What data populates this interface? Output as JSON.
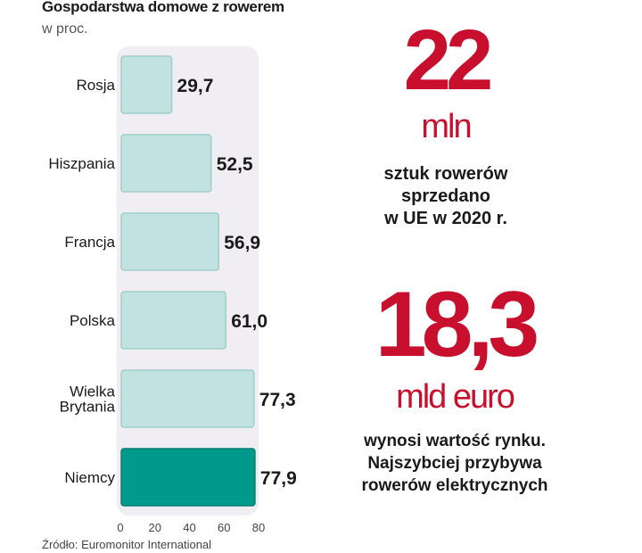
{
  "header": {
    "title": "Gospodarstwa domowe z rowerem",
    "subtitle": "w proc."
  },
  "chart_data": {
    "type": "bar",
    "orientation": "horizontal",
    "categories": [
      "Rosja",
      "Hiszpania",
      "Francja",
      "Polska",
      "Wielka\nBrytania",
      "Niemcy"
    ],
    "values": [
      29.7,
      52.5,
      56.9,
      61.0,
      77.3,
      77.9
    ],
    "value_labels": [
      "29,7",
      "52,5",
      "56,9",
      "61,0",
      "77,3",
      "77,9"
    ],
    "highlight_index": 5,
    "xlim": [
      0,
      80
    ],
    "xticks": [
      "0",
      "20",
      "40",
      "60",
      "80"
    ],
    "colors": {
      "bar": "#c1e2e0",
      "bar_border": "#9fcfcb",
      "highlight": "#009a8c",
      "plot_bg": "#f0eef2"
    }
  },
  "source": "Źródło: Euromonitor International",
  "stats": [
    {
      "value": "22",
      "unit": "mln",
      "description": "sztuk rowerów\nsprzedano\nw UE w 2020 r."
    },
    {
      "value": "18,3",
      "unit": "mld euro",
      "description": "wynosi wartość rynku.\nNajszybciej przybywa\nrowerów elektrycznych"
    }
  ],
  "accent_color": "#c8102e"
}
